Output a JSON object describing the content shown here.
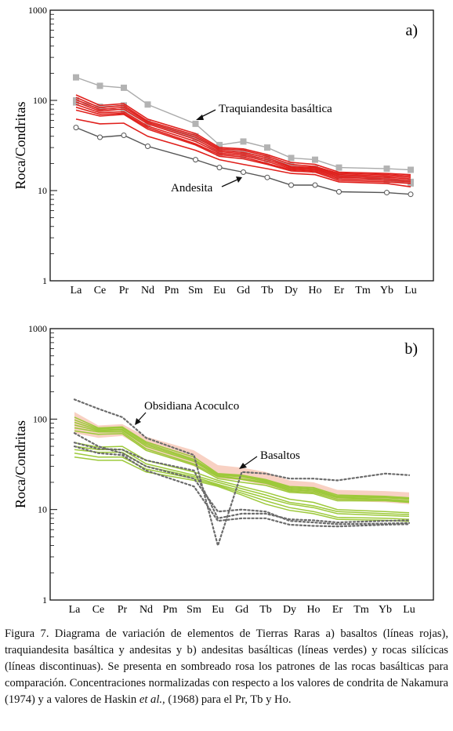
{
  "figure": {
    "caption_prefix": "Figura 7. Diagrama de variación de elementos de Tierras Raras a) basaltos (líneas rojas), traquiandesita basáltica y andesitas y b) andesitas basálticas (líneas verdes) y rocas silícicas (líneas discontinuas). Se presenta en sombreado rosa los patrones de las rocas basálticas para comparación. Concentraciones normalizadas con respecto a los valores de condrita de Nakamura (1974) y a valores de Haskin ",
    "caption_italic": "et al.",
    "caption_suffix": ", (1968) para el Pr, Tb y Ho."
  },
  "chart_data": [
    {
      "type": "line",
      "panel_label": "a)",
      "ylabel": "Roca/Condritas",
      "yscale": "log",
      "ylim": [
        1,
        1000
      ],
      "yticks": [
        "1",
        "10",
        "100",
        "1000"
      ],
      "categories": [
        "La",
        "Ce",
        "Pr",
        "Nd",
        "Pm",
        "Sm",
        "Eu",
        "Gd",
        "Tb",
        "Dy",
        "Ho",
        "Er",
        "Tm",
        "Yb",
        "Lu"
      ],
      "annotations": [
        "Traquiandesita basáltica",
        "Andesita"
      ],
      "colors": {
        "basalt": "#e0201c",
        "trachyandesite": "#aaaaaa",
        "andesite": "#555555"
      },
      "series": [
        {
          "group": "trachyandesite",
          "values": [
            180,
            145,
            138,
            90,
            null,
            55,
            32,
            35,
            30,
            23,
            22,
            18,
            null,
            17.5,
            17
          ]
        },
        {
          "group": "trachyandesite",
          "values": [
            100,
            85,
            88,
            57,
            null,
            40,
            28,
            27,
            23,
            19,
            17.5,
            15,
            null,
            13.5,
            12.5
          ]
        },
        {
          "group": "trachyandesite",
          "values": [
            95,
            82,
            78,
            55,
            null,
            38,
            26,
            24.5,
            22,
            18,
            17,
            14.5,
            null,
            13,
            12
          ]
        },
        {
          "group": "basalt",
          "values": [
            115,
            88,
            92,
            62,
            null,
            43,
            30,
            29,
            25,
            20.5,
            19.5,
            16,
            null,
            15.5,
            15
          ]
        },
        {
          "group": "basalt",
          "values": [
            108,
            83,
            88,
            59,
            null,
            41,
            29,
            28,
            24,
            19.5,
            18.5,
            15.5,
            null,
            15,
            14.5
          ]
        },
        {
          "group": "basalt",
          "values": [
            102,
            79,
            84,
            57,
            null,
            39,
            28,
            26.5,
            23,
            18.5,
            18,
            15,
            null,
            14.5,
            14
          ]
        },
        {
          "group": "basalt",
          "values": [
            96,
            76,
            80,
            55,
            null,
            37,
            27,
            25.5,
            22,
            18,
            17.5,
            14.5,
            null,
            14,
            13.5
          ]
        },
        {
          "group": "basalt",
          "values": [
            90,
            73,
            75,
            52,
            null,
            35,
            26,
            24.5,
            21,
            17.5,
            17,
            14,
            null,
            13.5,
            13
          ]
        },
        {
          "group": "basalt",
          "values": [
            84,
            70,
            72,
            50,
            null,
            33,
            25,
            23.5,
            20,
            17,
            16.5,
            13.5,
            null,
            13,
            12.5
          ]
        },
        {
          "group": "basalt",
          "values": [
            78,
            67,
            70,
            48,
            null,
            32,
            24,
            22.5,
            19.5,
            16.5,
            16,
            13,
            null,
            12.5,
            12
          ]
        },
        {
          "group": "basalt",
          "values": [
            62,
            55,
            56,
            40,
            null,
            28,
            22,
            19.5,
            17.5,
            15.5,
            15,
            12.5,
            null,
            12,
            11
          ]
        },
        {
          "group": "andesite",
          "values": [
            50,
            39,
            41,
            31,
            null,
            22,
            18,
            16,
            14,
            11.5,
            11.5,
            9.7,
            null,
            9.5,
            9.1
          ]
        }
      ]
    },
    {
      "type": "line",
      "panel_label": "b)",
      "ylabel": "Roca/Condritas",
      "yscale": "log",
      "ylim": [
        1,
        1000
      ],
      "yticks": [
        "1",
        "10",
        "100",
        "1000"
      ],
      "categories": [
        "La",
        "Ce",
        "Pr",
        "Nd",
        "Pm",
        "Sm",
        "Eu",
        "Gd",
        "Tb",
        "Dy",
        "Ho",
        "Er",
        "Tm",
        "Yb",
        "Lu"
      ],
      "annotations": [
        "Obsidiana Acoculco",
        "Basaltos"
      ],
      "colors": {
        "basaltic_andesite": "#9dc93a",
        "silicic": "#6b6b6b",
        "basalt_field": "#f7c9b8"
      },
      "basalt_field": {
        "upper": [
          120,
          85,
          88,
          64,
          null,
          45,
          31,
          29,
          26,
          21,
          20,
          16.5,
          null,
          16,
          15.5
        ],
        "lower": [
          70,
          62,
          65,
          46,
          null,
          30,
          22,
          21,
          18.5,
          15.5,
          15,
          12.5,
          null,
          12,
          11.5
        ]
      },
      "series": [
        {
          "group": "basaltic_andesite",
          "values": [
            105,
            80,
            82,
            56,
            null,
            38,
            25,
            24,
            21.5,
            18,
            17.5,
            14.5,
            null,
            14,
            13.5
          ]
        },
        {
          "group": "basaltic_andesite",
          "values": [
            98,
            78,
            80,
            54,
            null,
            36,
            24.5,
            23.5,
            21,
            17.5,
            17,
            14,
            null,
            13.8,
            13.2
          ]
        },
        {
          "group": "basaltic_andesite",
          "values": [
            92,
            76,
            77,
            52,
            null,
            35,
            24,
            23,
            20.5,
            17,
            16.5,
            13.8,
            null,
            13.5,
            13
          ]
        },
        {
          "group": "basaltic_andesite",
          "values": [
            86,
            74,
            75,
            50,
            null,
            34,
            23.5,
            22,
            20,
            16.5,
            16,
            13.5,
            null,
            13,
            12.5
          ]
        },
        {
          "group": "basaltic_andesite",
          "values": [
            80,
            72,
            72,
            47,
            null,
            32,
            23,
            21.5,
            19.5,
            16,
            15.5,
            13,
            null,
            12.8,
            12.2
          ]
        },
        {
          "group": "basaltic_andesite",
          "values": [
            74,
            68,
            69,
            45,
            null,
            31,
            22,
            20,
            18.5,
            15.5,
            15,
            12.5,
            null,
            12.5,
            12
          ]
        },
        {
          "group": "basaltic_andesite",
          "values": [
            55,
            49,
            50,
            35,
            null,
            26,
            21,
            18,
            15.5,
            13,
            12,
            10,
            null,
            9.5,
            9.2
          ]
        },
        {
          "group": "basaltic_andesite",
          "values": [
            50,
            46,
            46,
            32,
            null,
            24,
            20,
            17,
            14.5,
            12,
            11,
            9.5,
            null,
            9,
            8.8
          ]
        },
        {
          "group": "basaltic_andesite",
          "values": [
            46,
            43,
            43,
            30,
            null,
            23,
            19,
            16,
            13.5,
            11.5,
            10.5,
            9,
            null,
            8.6,
            8.4
          ]
        },
        {
          "group": "basaltic_andesite",
          "values": [
            42,
            38,
            38,
            28,
            null,
            22,
            18.5,
            15.2,
            12.5,
            10.5,
            9.5,
            8.2,
            null,
            8,
            7.8
          ]
        },
        {
          "group": "basaltic_andesite",
          "values": [
            38,
            35,
            35,
            26,
            null,
            21,
            18,
            14.5,
            11.5,
            9.8,
            9,
            7.8,
            null,
            7.6,
            7.4
          ]
        },
        {
          "group": "silicic",
          "values": [
            165,
            130,
            105,
            62,
            null,
            40,
            4,
            26,
            25,
            22,
            22,
            21,
            null,
            25,
            24
          ]
        },
        {
          "group": "silicic",
          "values": [
            70,
            50,
            42,
            30,
            null,
            22,
            9.5,
            10,
            9.5,
            7.5,
            7.2,
            6.9,
            null,
            7,
            7.1
          ]
        },
        {
          "group": "silicic",
          "values": [
            55,
            47,
            46,
            35,
            null,
            27,
            8,
            9,
            9,
            7.8,
            7.6,
            7.2,
            null,
            7.5,
            7.6
          ]
        },
        {
          "group": "silicic",
          "values": [
            50,
            42,
            40,
            27,
            null,
            18,
            7.5,
            8,
            8,
            6.8,
            6.6,
            6.5,
            null,
            6.8,
            6.9
          ]
        }
      ]
    }
  ]
}
